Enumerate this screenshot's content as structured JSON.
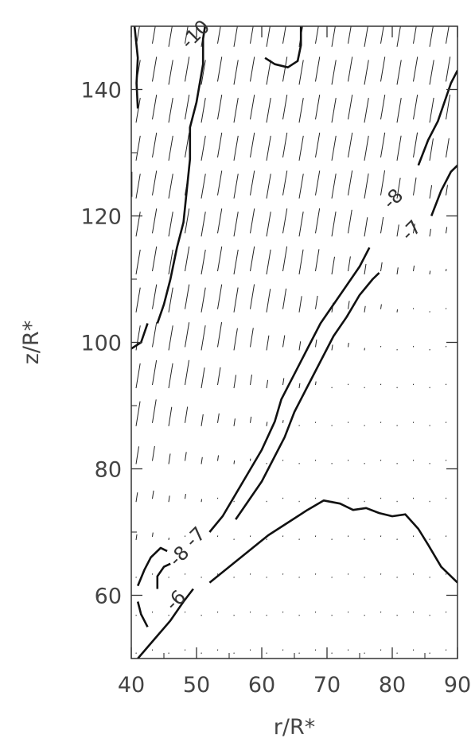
{
  "chart_data": {
    "type": "vector-field-contour",
    "xlabel": "r/R*",
    "ylabel": "z/R*",
    "xlim": [
      40,
      90
    ],
    "ylim": [
      50,
      150
    ],
    "xticks": [
      "40",
      "50",
      "60",
      "70",
      "80",
      "90"
    ],
    "yticks": [
      "60",
      "80",
      "100",
      "120",
      "140"
    ],
    "grid": false,
    "contour_labels": [
      {
        "text": "-10",
        "r": 50.5,
        "z": 148
      },
      {
        "text": "-8",
        "r": 80.8,
        "z": 122
      },
      {
        "text": "-7",
        "r": 83.6,
        "z": 117
      },
      {
        "text": "-7",
        "r": 50.5,
        "z": 68.5
      },
      {
        "text": "-8",
        "r": 48.0,
        "z": 65.5
      },
      {
        "text": "-6",
        "r": 47.5,
        "z": 58.5
      }
    ],
    "contours": [
      {
        "level": "-6",
        "points": [
          [
            52,
            62
          ],
          [
            55,
            64.5
          ],
          [
            58,
            67
          ],
          [
            61,
            69.5
          ],
          [
            64,
            71.5
          ],
          [
            67,
            73.5
          ],
          [
            69.5,
            75
          ],
          [
            72,
            74.5
          ],
          [
            74,
            73.5
          ],
          [
            76,
            73.8
          ],
          [
            78,
            73
          ],
          [
            80,
            72.5
          ],
          [
            82,
            72.8
          ],
          [
            84,
            70.5
          ],
          [
            85.5,
            68
          ],
          [
            87.5,
            64.5
          ],
          [
            90,
            62
          ]
        ]
      },
      {
        "level": "-7",
        "points": [
          [
            52,
            70
          ],
          [
            54,
            72.5
          ],
          [
            56,
            76
          ],
          [
            58,
            79.5
          ],
          [
            60,
            83
          ],
          [
            62,
            87.5
          ],
          [
            63,
            91
          ],
          [
            65,
            95
          ],
          [
            67,
            99
          ],
          [
            69,
            103
          ],
          [
            71,
            106
          ],
          [
            73,
            109
          ],
          [
            75,
            112
          ],
          [
            76.5,
            115
          ]
        ]
      },
      {
        "level": "-7",
        "points": [
          [
            56,
            72
          ],
          [
            58,
            75
          ],
          [
            60,
            78
          ],
          [
            62,
            82
          ],
          [
            63.5,
            85
          ],
          [
            65,
            89
          ],
          [
            67,
            93
          ],
          [
            69,
            97
          ],
          [
            71,
            101
          ],
          [
            73,
            104
          ],
          [
            75,
            107.5
          ],
          [
            77,
            110
          ],
          [
            78,
            111
          ]
        ]
      },
      {
        "level": "-8",
        "points": [
          [
            41,
            61.5
          ],
          [
            42,
            64
          ],
          [
            43,
            66
          ],
          [
            44.5,
            67.5
          ],
          [
            45.5,
            67
          ]
        ]
      },
      {
        "level": "-8",
        "points": [
          [
            42.5,
            55
          ],
          [
            41.5,
            57
          ],
          [
            41,
            59
          ]
        ]
      },
      {
        "level": "-8",
        "points": [
          [
            44,
            61
          ],
          [
            44,
            63
          ],
          [
            45,
            64.5
          ],
          [
            46,
            65
          ]
        ]
      },
      {
        "level": "-8",
        "points": [
          [
            41,
            50
          ],
          [
            43.5,
            53
          ],
          [
            46,
            56
          ],
          [
            48,
            59
          ],
          [
            49.5,
            61
          ]
        ]
      },
      {
        "level": "-8",
        "points": [
          [
            84,
            128
          ],
          [
            85.5,
            132
          ],
          [
            87,
            135
          ],
          [
            88,
            138
          ],
          [
            89,
            141
          ],
          [
            90,
            143
          ]
        ]
      },
      {
        "level": "-8",
        "points": [
          [
            86,
            120
          ],
          [
            87.5,
            124
          ],
          [
            89,
            127
          ],
          [
            90,
            128
          ]
        ]
      },
      {
        "level": "-10",
        "points": [
          [
            41,
            137
          ],
          [
            40.8,
            141
          ],
          [
            41,
            145
          ],
          [
            40.5,
            150
          ]
        ]
      },
      {
        "level": "-10",
        "points": [
          [
            44,
            103
          ],
          [
            45,
            106
          ],
          [
            46,
            110
          ],
          [
            47,
            115
          ],
          [
            48,
            119
          ],
          [
            48.5,
            124
          ],
          [
            49,
            129
          ],
          [
            49,
            134
          ],
          [
            50,
            138
          ],
          [
            50.5,
            141
          ],
          [
            51,
            144
          ],
          [
            51,
            148
          ],
          [
            51.3,
            150
          ]
        ]
      },
      {
        "level": "-10",
        "points": [
          [
            60.5,
            145
          ],
          [
            62,
            144
          ],
          [
            64,
            143.5
          ],
          [
            65.5,
            144.5
          ],
          [
            66,
            147
          ],
          [
            66,
            150
          ]
        ]
      },
      {
        "level": "-10",
        "points": [
          [
            40,
            99
          ],
          [
            41.5,
            100
          ],
          [
            42.5,
            103
          ]
        ]
      },
      {
        "level": "-10",
        "points": [
          [
            40,
            127
          ],
          [
            40,
            123
          ]
        ]
      }
    ]
  }
}
